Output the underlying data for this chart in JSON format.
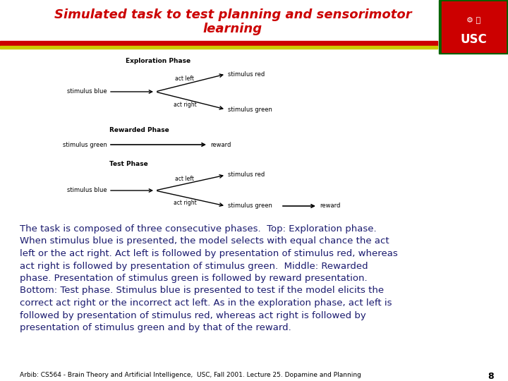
{
  "title_line1": "Simulated task to test planning and sensorimotor",
  "title_line2": "learning",
  "title_color": "#CC0000",
  "bg_color": "#FFFFFF",
  "header_bar_red": "#CC0000",
  "header_bar_yellow": "#CCCC00",
  "footer_text": "Arbib: CS564 - Brain Theory and Artificial Intelligence,  USC, Fall 2001. Lecture 25. Dopamine and Planning",
  "footer_page": "8",
  "body_lines": [
    "The task is composed of three consecutive phases.  Top: Exploration phase.",
    "When stimulus blue is presented, the model selects with equal chance the act",
    "left or the act right. Act left is followed by presentation of stimulus red, whereas",
    "act right is followed by presentation of stimulus green.  Middle: Rewarded",
    "phase. Presentation of stimulus green is followed by reward presentation.",
    "Bottom: Test phase. Stimulus blue is presented to test if the model elicits the",
    "correct act right or the incorrect act left. As in the exploration phase, act left is",
    "followed by presentation of stimulus red, whereas act right is followed by",
    "presentation of stimulus green and by that of the reward."
  ],
  "text_color": "#1a1a6e",
  "diagram_text_color": "#000000",
  "usc_border_color": "#006400",
  "usc_bg_color": "#CC0000",
  "usc_text_color": "#FFFFFF"
}
